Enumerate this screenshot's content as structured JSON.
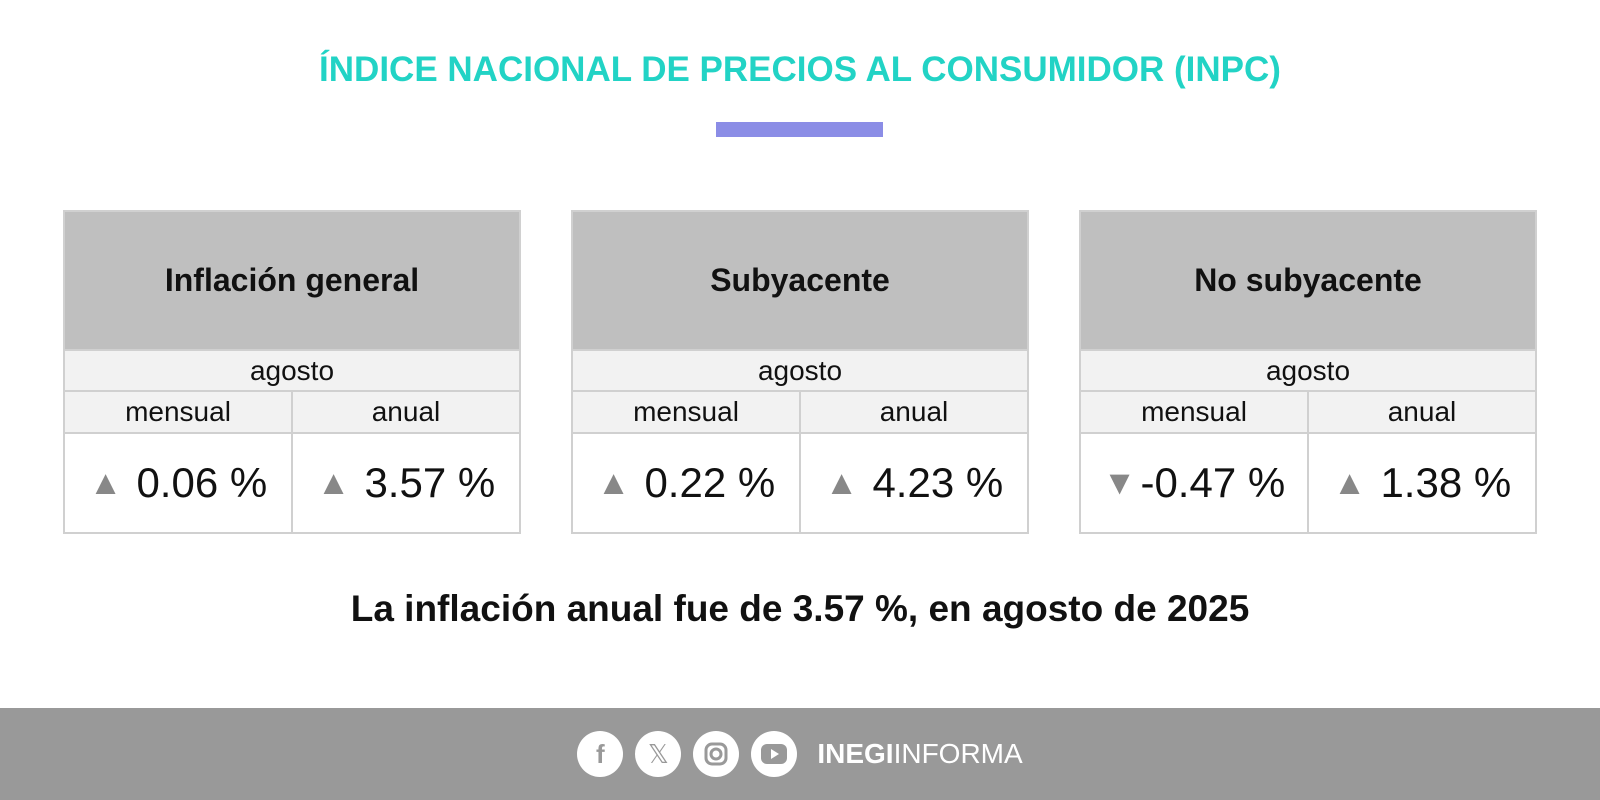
{
  "title": "ÍNDICE NACIONAL DE PRECIOS AL CONSUMIDOR (INPC)",
  "accent_color": "#22d3c5",
  "cards": [
    {
      "title": "Inflación general",
      "month": "agosto",
      "col1": "mensual",
      "col2": "anual",
      "v1": "0.06 %",
      "a1": "▲",
      "v2": "3.57 %",
      "a2": "▲"
    },
    {
      "title": "Subyacente",
      "month": "agosto",
      "col1": "mensual",
      "col2": "anual",
      "v1": "0.22 %",
      "a1": "▲",
      "v2": "4.23 %",
      "a2": "▲"
    },
    {
      "title": "No subyacente",
      "month": "agosto",
      "col1": "mensual",
      "col2": "anual",
      "v1": "-0.47 %",
      "a1": "▼",
      "v2": "1.38 %",
      "a2": "▲"
    }
  ],
  "summary": "La inflación anual fue de 3.57 %, en agosto de 2025",
  "footer": {
    "icons": [
      "facebook-icon",
      "x-icon",
      "instagram-icon",
      "youtube-icon"
    ],
    "brand_bold": "INEGI",
    "brand_light": "INFORMA"
  }
}
